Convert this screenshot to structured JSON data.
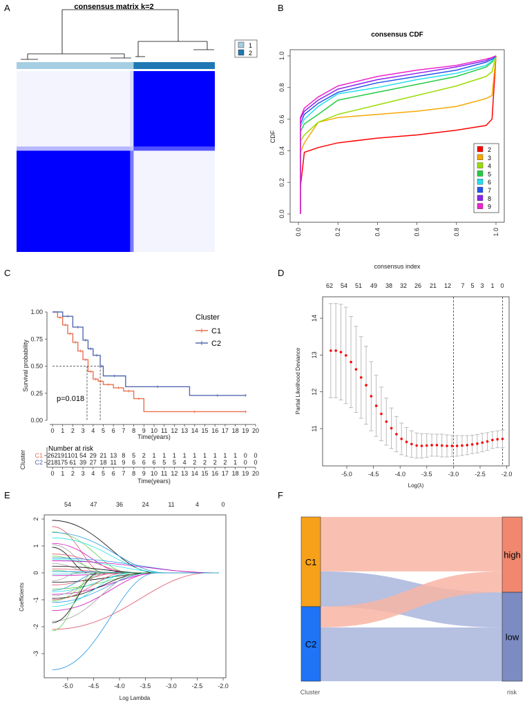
{
  "panel_labels": [
    "A",
    "B",
    "C",
    "D",
    "E",
    "F"
  ],
  "chart_data": [
    {
      "panel": "A",
      "type": "heatmap",
      "title": "consensus matrix k=2",
      "legend": [
        {
          "label": "1",
          "color": "#A6CEE3"
        },
        {
          "label": "2",
          "color": "#1F78B4"
        }
      ],
      "column_clusters": [
        {
          "label": "1",
          "fraction": 0.59
        },
        {
          "label": "2",
          "fraction": 0.41
        }
      ],
      "row_clusters_top_first": [
        {
          "label": "2",
          "fraction": 0.44
        },
        {
          "label": "1",
          "fraction": 0.56
        }
      ],
      "high_consensus_color": "#0000FF"
    },
    {
      "panel": "B",
      "type": "line",
      "title": "consensus CDF",
      "xlabel": "consensus index",
      "ylabel": "CDF",
      "xlim": [
        0,
        1
      ],
      "ylim": [
        0,
        1
      ],
      "xticks": [
        "0.0",
        "0.2",
        "0.4",
        "0.6",
        "0.8",
        "1.0"
      ],
      "yticks": [
        "0.0",
        "0.2",
        "0.4",
        "0.6",
        "0.8",
        "1.0"
      ],
      "legend_position": "bottom-right",
      "x": [
        0.01,
        0.03,
        0.1,
        0.2,
        0.4,
        0.6,
        0.8,
        0.95,
        0.98,
        1.0
      ],
      "series": [
        {
          "name": "2",
          "color": "#FF0000",
          "values": [
            0.17,
            0.39,
            0.42,
            0.45,
            0.48,
            0.5,
            0.53,
            0.56,
            0.6,
            1.0
          ]
        },
        {
          "name": "3",
          "color": "#F5A800",
          "values": [
            0.39,
            0.45,
            0.58,
            0.61,
            0.63,
            0.65,
            0.68,
            0.73,
            0.75,
            1.0
          ]
        },
        {
          "name": "4",
          "color": "#99DD00",
          "values": [
            0.46,
            0.5,
            0.58,
            0.63,
            0.69,
            0.75,
            0.81,
            0.87,
            0.9,
            1.0
          ]
        },
        {
          "name": "5",
          "color": "#22CC44",
          "values": [
            0.52,
            0.57,
            0.63,
            0.72,
            0.77,
            0.82,
            0.87,
            0.93,
            0.96,
            1.0
          ]
        },
        {
          "name": "6",
          "color": "#22DDEE",
          "values": [
            0.55,
            0.6,
            0.68,
            0.76,
            0.8,
            0.85,
            0.89,
            0.94,
            0.97,
            1.0
          ]
        },
        {
          "name": "7",
          "color": "#2255EE",
          "values": [
            0.57,
            0.63,
            0.7,
            0.77,
            0.83,
            0.87,
            0.91,
            0.96,
            0.98,
            1.0
          ]
        },
        {
          "name": "8",
          "color": "#8822EE",
          "values": [
            0.6,
            0.65,
            0.72,
            0.79,
            0.85,
            0.89,
            0.93,
            0.97,
            0.99,
            1.0
          ]
        },
        {
          "name": "9",
          "color": "#EE22CC",
          "values": [
            0.61,
            0.67,
            0.74,
            0.81,
            0.87,
            0.91,
            0.94,
            0.98,
            0.99,
            1.0
          ]
        }
      ]
    },
    {
      "panel": "C",
      "type": "line",
      "subtype": "kaplan-meier",
      "xlabel": "Time(years)",
      "ylabel": "Survival probability",
      "legend_title": "Cluster",
      "legend_position": "top-right",
      "p_value": "p=0.018",
      "xlim": [
        0,
        20
      ],
      "ylim": [
        0,
        1
      ],
      "xticks": [
        "0",
        "1",
        "2",
        "3",
        "4",
        "5",
        "6",
        "7",
        "8",
        "9",
        "10",
        "11",
        "12",
        "13",
        "14",
        "15",
        "16",
        "17",
        "18",
        "19",
        "20"
      ],
      "yticks": [
        "0.00",
        "0.25",
        "0.50",
        "0.75",
        "1.00"
      ],
      "median_times": [
        3.4,
        4.7
      ],
      "series": [
        {
          "name": "C1",
          "color": "#E9704F",
          "time": [
            0,
            0.5,
            1,
            1.5,
            2,
            2.5,
            3,
            3.5,
            4,
            4.5,
            5,
            6,
            7,
            8,
            9,
            19
          ],
          "surv": [
            1,
            0.95,
            0.88,
            0.8,
            0.72,
            0.64,
            0.56,
            0.45,
            0.38,
            0.36,
            0.33,
            0.3,
            0.27,
            0.2,
            0.08,
            0.08
          ]
        },
        {
          "name": "C2",
          "color": "#5468B0",
          "time": [
            0,
            1,
            2,
            3,
            3.5,
            4,
            4.7,
            5,
            7.2,
            13.5,
            19
          ],
          "surv": [
            1,
            0.96,
            0.86,
            0.74,
            0.66,
            0.6,
            0.5,
            0.41,
            0.31,
            0.23,
            0.23
          ]
        }
      ],
      "risk_table": {
        "title": "Number at risk",
        "ylabel": "Cluster",
        "xlabel": "Time(years)",
        "rows": [
          {
            "name": "C1",
            "color": "#E9704F",
            "values": [
              "262",
              "191",
              "101",
              "54",
              "29",
              "21",
              "13",
              "8",
              "5",
              "2",
              "1",
              "1",
              "1",
              "1",
              "1",
              "1",
              "1",
              "1",
              "1",
              "0",
              "0"
            ]
          },
          {
            "name": "C2",
            "color": "#5468B0",
            "values": [
              "218",
              "175",
              "61",
              "39",
              "27",
              "18",
              "11",
              "9",
              "6",
              "6",
              "6",
              "5",
              "5",
              "4",
              "2",
              "2",
              "2",
              "2",
              "1",
              "0",
              "0"
            ]
          }
        ]
      }
    },
    {
      "panel": "D",
      "type": "scatter",
      "xlabel": "Log(λ)",
      "ylabel": "Partial Likelihood Deviance",
      "xlim": [
        -5.4,
        -2.0
      ],
      "ylim": [
        10.2,
        14.5
      ],
      "xticks": [
        "-5.0",
        "-4.5",
        "-4.0",
        "-3.5",
        "-3.0",
        "-2.5",
        "-2.0"
      ],
      "yticks": [
        "11",
        "12",
        "13",
        "14"
      ],
      "top_labels": [
        "62",
        "54",
        "51",
        "49",
        "38",
        "32",
        "26",
        "21",
        "12",
        "7",
        "5",
        "3",
        "1",
        "0"
      ],
      "x_start": -5.3,
      "x_end": -2.08,
      "mean": [
        13.12,
        13.12,
        13.08,
        12.99,
        12.81,
        12.61,
        12.39,
        12.18,
        11.88,
        11.62,
        11.4,
        11.19,
        11.01,
        10.85,
        10.72,
        10.64,
        10.58,
        10.54,
        10.53,
        10.54,
        10.55,
        10.55,
        10.54,
        10.53,
        10.53,
        10.53,
        10.54,
        10.55,
        10.57,
        10.59,
        10.62,
        10.65,
        10.69,
        10.71,
        10.72
      ],
      "upper": [
        14.4,
        14.4,
        14.38,
        14.3,
        14.05,
        13.78,
        13.5,
        13.24,
        12.82,
        12.45,
        12.13,
        11.83,
        11.56,
        11.33,
        11.15,
        11.03,
        10.94,
        10.88,
        10.86,
        10.86,
        10.85,
        10.85,
        10.85,
        10.83,
        10.82,
        10.81,
        10.81,
        10.81,
        10.82,
        10.84,
        10.87,
        10.89,
        10.92,
        10.94,
        10.96
      ],
      "vlines": [
        -3.0,
        -2.08
      ],
      "point_color": "#FF0000"
    },
    {
      "panel": "E",
      "type": "line",
      "xlabel": "Log Lambda",
      "ylabel": "Coefficients",
      "xlim": [
        -5.4,
        -2.0
      ],
      "ylim": [
        -3.8,
        2.1
      ],
      "xticks": [
        "-5.0",
        "-4.5",
        "-4.0",
        "-3.5",
        "-3.0",
        "-2.5",
        "-2.0"
      ],
      "yticks": [
        "-3",
        "-2",
        "-1",
        "0",
        "1",
        "2"
      ],
      "top_labels": [
        "54",
        "47",
        "36",
        "24",
        "11",
        "4",
        "0"
      ],
      "palette": [
        "#000000",
        "#DF536B",
        "#61D04F",
        "#2297E6",
        "#28E2E5",
        "#CD0BBC",
        "#9E9E9E"
      ],
      "series": [
        {
          "start": 1.95,
          "zero_at": -3.3
        },
        {
          "start": 1.72,
          "zero_at": -4.3
        },
        {
          "start": 1.52,
          "zero_at": -3.8
        },
        {
          "start": 1.5,
          "zero_at": -3.1
        },
        {
          "start": 1.3,
          "zero_at": -3.2
        },
        {
          "start": 1.1,
          "zero_at": -3.9
        },
        {
          "start": 1.05,
          "zero_at": -4.4
        },
        {
          "start": 0.95,
          "zero_at": -4.6
        },
        {
          "start": 0.7,
          "zero_at": -3.7
        },
        {
          "start": 0.62,
          "zero_at": -4.2
        },
        {
          "start": 0.55,
          "zero_at": -2.2
        },
        {
          "start": 0.5,
          "zero_at": -3.0
        },
        {
          "start": 0.45,
          "zero_at": -2.09
        },
        {
          "start": 0.35,
          "zero_at": -4.5
        },
        {
          "start": 0.25,
          "zero_at": -3.5
        },
        {
          "start": 0.15,
          "zero_at": -4.0
        },
        {
          "start": 0.1,
          "zero_at": -4.7
        },
        {
          "start": 0.05,
          "zero_at": -3.3
        },
        {
          "start": -0.05,
          "zero_at": -4.5
        },
        {
          "start": -0.1,
          "zero_at": -3.6
        },
        {
          "start": -0.3,
          "zero_at": -4.8
        },
        {
          "start": -0.35,
          "zero_at": -3.3
        },
        {
          "start": -0.45,
          "zero_at": -4.0
        },
        {
          "start": -0.6,
          "zero_at": -3.3
        },
        {
          "start": -0.65,
          "zero_at": -4.4
        },
        {
          "start": -0.7,
          "zero_at": -3.7
        },
        {
          "start": -0.8,
          "zero_at": -3.2
        },
        {
          "start": -0.85,
          "zero_at": -4.2
        },
        {
          "start": -0.95,
          "zero_at": -3.5
        },
        {
          "start": -1.0,
          "zero_at": -3.9
        },
        {
          "start": -1.05,
          "zero_at": -4.3
        },
        {
          "start": -1.1,
          "zero_at": -3.4
        },
        {
          "start": -1.25,
          "zero_at": -3.8
        },
        {
          "start": -1.4,
          "zero_at": -3.3
        },
        {
          "start": -1.8,
          "zero_at": -3.6
        },
        {
          "start": -1.85,
          "zero_at": -4.4
        },
        {
          "start": -2.1,
          "zero_at": -2.28
        },
        {
          "start": -2.15,
          "zero_at": -4.5
        },
        {
          "start": -3.6,
          "zero_at": -3.3
        }
      ]
    },
    {
      "panel": "F",
      "type": "sankey",
      "left_axis": "Cluster",
      "right_axis": "risk",
      "left_nodes": [
        {
          "name": "C1",
          "value": 262,
          "color": "#F7A11A"
        },
        {
          "name": "C2",
          "value": 218,
          "color": "#1E74F5"
        }
      ],
      "right_nodes": [
        {
          "name": "high",
          "value": 220,
          "color": "#F0876E"
        },
        {
          "name": "low",
          "value": 260,
          "color": "#7C8BC2"
        }
      ],
      "flows": [
        {
          "from": "C1",
          "to": "high",
          "value": 159,
          "color": "#F8B5A5"
        },
        {
          "from": "C1",
          "to": "low",
          "value": 103,
          "color": "#A9B5DC"
        },
        {
          "from": "C2",
          "to": "high",
          "value": 61,
          "color": "#F8B5A5"
        },
        {
          "from": "C2",
          "to": "low",
          "value": 157,
          "color": "#A9B5DC"
        }
      ]
    }
  ]
}
